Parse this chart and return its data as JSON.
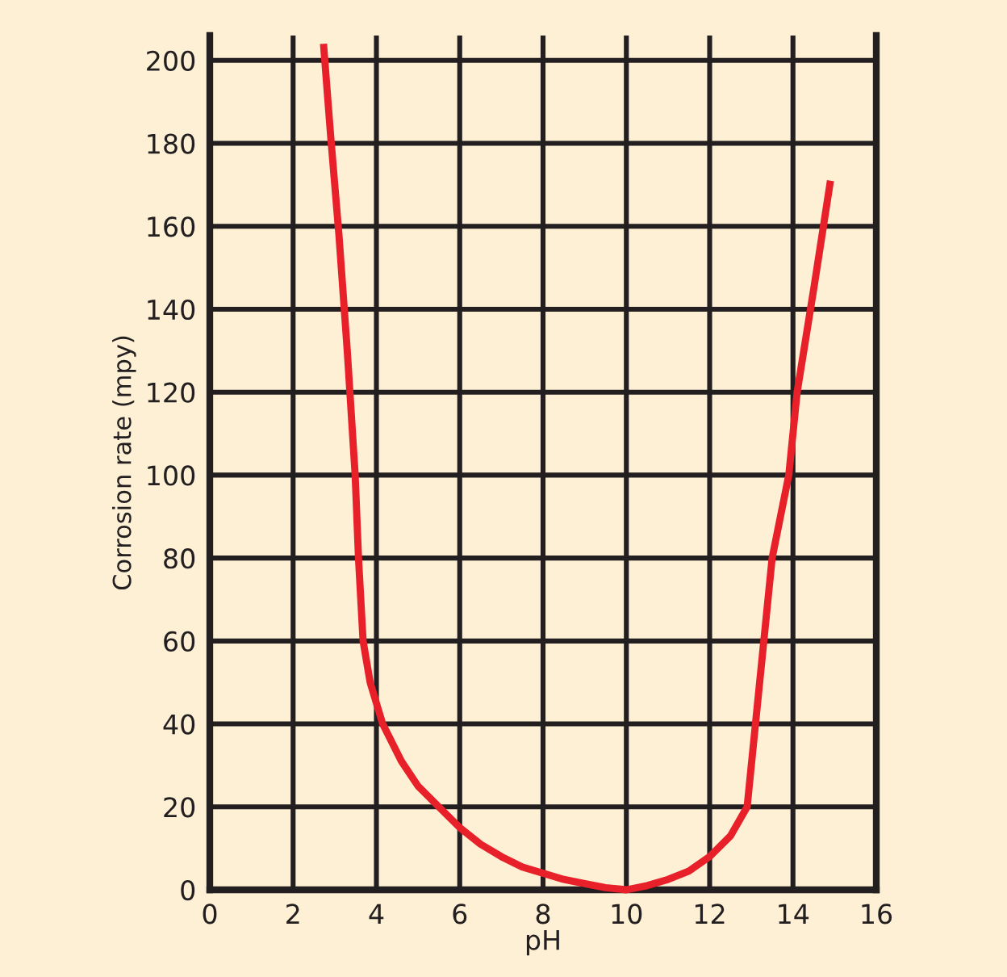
{
  "chart_data": {
    "type": "line",
    "xlabel": "pH",
    "ylabel": "Corrosion rate (mpy)",
    "xlim": [
      0,
      16
    ],
    "ylim": [
      0,
      206
    ],
    "xticks": [
      0,
      2,
      4,
      6,
      8,
      10,
      12,
      14,
      16
    ],
    "yticks": [
      0,
      20,
      40,
      60,
      80,
      100,
      120,
      140,
      160,
      180,
      200
    ],
    "grid": true,
    "legend": false,
    "marker": "none",
    "line_style": "solid",
    "series": [
      {
        "color": "#e8202a",
        "x": [
          2.73,
          2.9,
          3.1,
          3.3,
          3.49,
          3.57,
          3.68,
          3.85,
          4.15,
          4.6,
          5.0,
          5.5,
          6.0,
          6.5,
          7.0,
          7.5,
          8.0,
          8.5,
          9.0,
          9.5,
          10.0,
          10.5,
          11.0,
          11.5,
          12.0,
          12.5,
          12.9,
          13.1,
          13.3,
          13.5,
          13.9,
          14.1,
          14.5,
          14.9
        ],
        "values": [
          204,
          182,
          158,
          130,
          100,
          80,
          60,
          50,
          40,
          31,
          25,
          20,
          15,
          11,
          8,
          5.5,
          4,
          2.5,
          1.5,
          0.5,
          0,
          1,
          2.5,
          4.5,
          8,
          13,
          20,
          40,
          60,
          80,
          100,
          120,
          145,
          171
        ]
      }
    ]
  }
}
